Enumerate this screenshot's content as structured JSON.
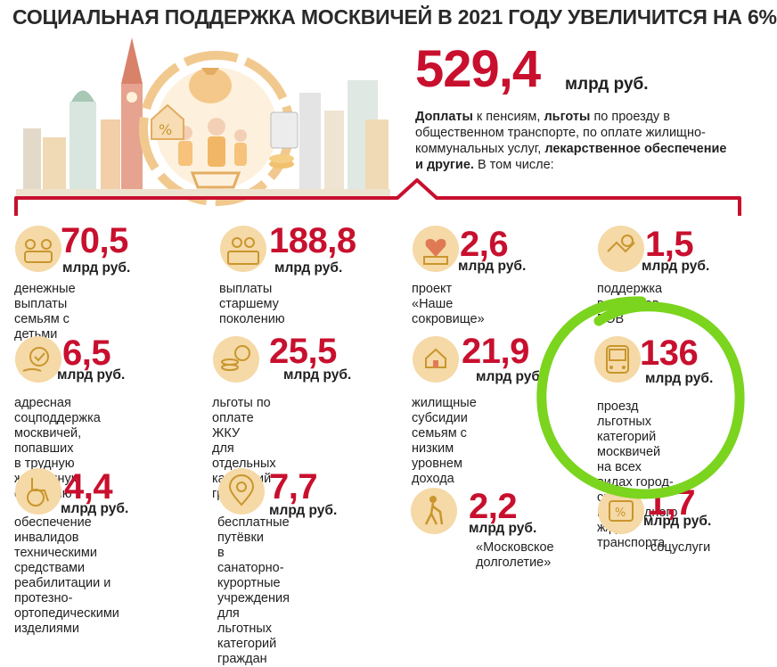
{
  "title": "СОЦИАЛЬНАЯ ПОДДЕРЖКА МОСКВИЧЕЙ В 2021 ГОДУ УВЕЛИЧИТСЯ НА 6%",
  "total": {
    "value": "529,4",
    "unit": "млрд руб."
  },
  "intro": {
    "b1": "Доплаты",
    "t1": " к пенсиям, ",
    "b2": "льготы",
    "t2": " по проезду в общественном транспорте, по оплате жилищно-коммунальных услуг, ",
    "b3": "лекарственное обеспечение и другие.",
    "t3": " В том числе:"
  },
  "items": [
    {
      "value": "70,5",
      "unit": "млрд руб.",
      "desc": "денежные выплаты\nсемьям с детьми",
      "icon": "family-icon"
    },
    {
      "value": "188,8",
      "unit": "млрд руб.",
      "desc": "выплаты старшему\nпоколению",
      "icon": "elderly-icon"
    },
    {
      "value": "2,6",
      "unit": "млрд руб.",
      "desc": "проект «Наше\nсокровище»",
      "icon": "heart-gift-icon"
    },
    {
      "value": "1,5",
      "unit": "млрд руб.",
      "desc": "поддержка\nветеранов ВОВ",
      "icon": "veteran-icon"
    },
    {
      "value": "6,5",
      "unit": "млрд руб.",
      "desc": "адресная соцподдержка\nмосквичей, попавших\nв трудную жизненную\nситуацию",
      "icon": "support-hand-icon"
    },
    {
      "value": "25,5",
      "unit": "млрд руб.",
      "desc": "льготы по оплате ЖКУ\nдля отдельных категорий\nграждан",
      "icon": "coins-percent-icon"
    },
    {
      "value": "21,9",
      "unit": "млрд руб.",
      "desc": "жилищные субсидии\nсемьям с низким\nуровнем дохода",
      "icon": "house-hand-icon"
    },
    {
      "value": "136",
      "unit": "млрд руб.",
      "desc": "проезд льготных\nкатегорий москвичей\nна всех видах город-\nского и пригородного\nж/д транспорта",
      "icon": "bus-icon"
    },
    {
      "value": "4,4",
      "unit": "млрд руб.",
      "desc": "обеспечение инвалидов\nтехническими средствами\nреабилитации и протезно-\nортопедическими изделиями",
      "icon": "wheelchair-icon"
    },
    {
      "value": "7,7",
      "unit": "млрд руб.",
      "desc": "бесплатные путёвки\nв санаторно-курортные\nучреждения для льготных\nкатегорий граждан",
      "icon": "location-pin-icon"
    },
    {
      "value": "2,2",
      "unit": "млрд руб.",
      "desc": "«Московское\nдолголетие»",
      "icon": "walking-elder-icon"
    },
    {
      "value": "1,7",
      "unit": "млрд руб.",
      "desc": "соцуслуги",
      "icon": "services-icon"
    }
  ],
  "colors": {
    "accent": "#c8102e",
    "highlight": "#7bd41e",
    "icon_bg": "#f5d9a6",
    "icon_stroke": "#c9962e"
  }
}
